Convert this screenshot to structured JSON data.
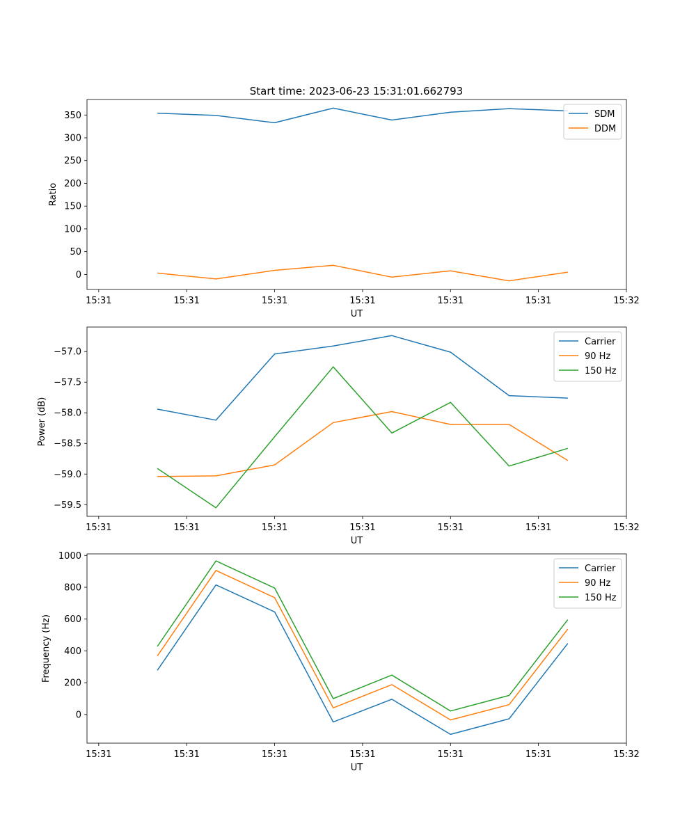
{
  "figure": {
    "title": "Start time: 2023-06-23 15:31:01.662793"
  },
  "chart_data": [
    {
      "type": "line",
      "xlabel": "UT",
      "ylabel": "Ratio",
      "x": [
        1,
        2,
        3,
        4,
        5,
        6,
        7,
        8
      ],
      "xlim": [
        -0.2,
        9.0
      ],
      "xticks": [
        0,
        1.5,
        3,
        4.5,
        6,
        7.5,
        9
      ],
      "xtick_labels": [
        "15:31",
        "15:31",
        "15:31",
        "15:31",
        "15:31",
        "15:31",
        "15:32"
      ],
      "ylim": [
        -33,
        384
      ],
      "yticks": [
        0,
        50,
        100,
        150,
        200,
        250,
        300,
        350
      ],
      "ytick_labels": [
        "0",
        "50",
        "100",
        "150",
        "200",
        "250",
        "300",
        "350"
      ],
      "legend": "top-right",
      "grid": false,
      "series": [
        {
          "name": "SDM",
          "color": "#1f77b4",
          "values": [
            354,
            349,
            333,
            365,
            339,
            356,
            364,
            359
          ]
        },
        {
          "name": "DDM",
          "color": "#ff7f0e",
          "values": [
            3,
            -10,
            9,
            20,
            -6,
            8,
            -14,
            5
          ]
        }
      ]
    },
    {
      "type": "line",
      "xlabel": "UT",
      "ylabel": "Power (dB)",
      "x": [
        1,
        2,
        3,
        4,
        5,
        6,
        7,
        8
      ],
      "xlim": [
        -0.2,
        9.0
      ],
      "xticks": [
        0,
        1.5,
        3,
        4.5,
        6,
        7.5,
        9
      ],
      "xtick_labels": [
        "15:31",
        "15:31",
        "15:31",
        "15:31",
        "15:31",
        "15:31",
        "15:32"
      ],
      "ylim": [
        -59.69,
        -56.6
      ],
      "yticks": [
        -59.5,
        -59.0,
        -58.5,
        -58.0,
        -57.5,
        -57.0
      ],
      "ytick_labels": [
        "−59.5",
        "−59.0",
        "−58.5",
        "−58.0",
        "−57.5",
        "−57.0"
      ],
      "legend": "top-right",
      "grid": false,
      "series": [
        {
          "name": "Carrier",
          "color": "#1f77b4",
          "values": [
            -57.94,
            -58.12,
            -57.04,
            -56.91,
            -56.74,
            -57.01,
            -57.72,
            -57.76
          ]
        },
        {
          "name": "90 Hz",
          "color": "#ff7f0e",
          "values": [
            -59.04,
            -59.03,
            -58.85,
            -58.16,
            -57.98,
            -58.19,
            -58.19,
            -58.78
          ]
        },
        {
          "name": "150 Hz",
          "color": "#2ca02c",
          "values": [
            -58.91,
            -59.55,
            -58.39,
            -57.25,
            -58.33,
            -57.83,
            -58.87,
            -58.58
          ]
        }
      ]
    },
    {
      "type": "line",
      "xlabel": "UT",
      "ylabel": "Frequency (Hz)",
      "x": [
        1,
        2,
        3,
        4,
        5,
        6,
        7,
        8
      ],
      "xlim": [
        -0.2,
        9.0
      ],
      "xticks": [
        0,
        1.5,
        3,
        4.5,
        6,
        7.5,
        9
      ],
      "xtick_labels": [
        "15:31",
        "15:31",
        "15:31",
        "15:31",
        "15:31",
        "15:31",
        "15:32"
      ],
      "ylim": [
        -180,
        1010
      ],
      "yticks": [
        0,
        200,
        400,
        600,
        800,
        1000
      ],
      "ytick_labels": [
        "0",
        "200",
        "400",
        "600",
        "800",
        "1000"
      ],
      "legend": "top-right",
      "grid": false,
      "series": [
        {
          "name": "Carrier",
          "color": "#1f77b4",
          "values": [
            278,
            815,
            645,
            -47,
            96,
            -125,
            -27,
            447
          ]
        },
        {
          "name": "90 Hz",
          "color": "#ff7f0e",
          "values": [
            368,
            906,
            735,
            42,
            188,
            -34,
            62,
            537
          ]
        },
        {
          "name": "150 Hz",
          "color": "#2ca02c",
          "values": [
            428,
            966,
            795,
            100,
            248,
            22,
            120,
            596
          ]
        }
      ]
    }
  ]
}
